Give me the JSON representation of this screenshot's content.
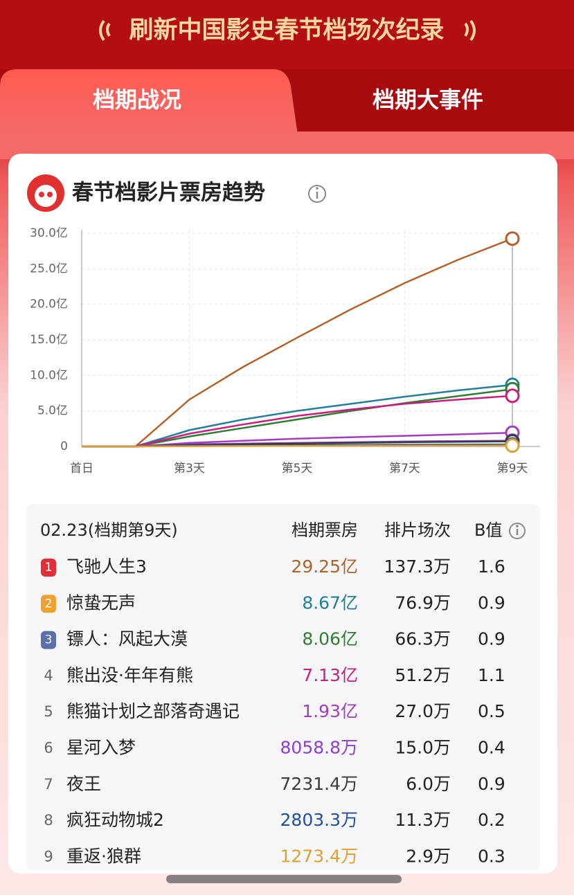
{
  "banner": {
    "title": "刷新中国影史春节档场次纪录"
  },
  "tabs": [
    "档期战况",
    "档期大事件"
  ],
  "card": {
    "title": "春节档影片票房趋势"
  },
  "chart_data": {
    "type": "line",
    "categories": [
      "首日",
      null,
      "第3天",
      null,
      "第5天",
      null,
      "第7天",
      null,
      "第9天"
    ],
    "ylim": [
      0,
      30
    ],
    "yticks": [
      0,
      {
        "value": 5,
        "label": "5.0亿"
      },
      {
        "value": 10,
        "label": "10.0亿"
      },
      {
        "value": 15,
        "label": "15.0亿"
      },
      {
        "value": 20,
        "label": "20.0亿"
      },
      {
        "value": 25,
        "label": "25.0亿"
      },
      {
        "value": 30,
        "label": "30.0亿"
      }
    ],
    "grid": true,
    "series": [
      {
        "color": "#b0622a",
        "values": [
          0,
          0,
          6.6,
          11.2,
          15.3,
          19.3,
          23.0,
          26.3,
          29.25
        ]
      },
      {
        "color": "#227f96",
        "values": [
          0,
          0,
          2.3,
          3.8,
          5.0,
          6.0,
          7.0,
          7.9,
          8.67
        ]
      },
      {
        "color": "#2e7d32",
        "values": [
          0,
          0,
          1.4,
          2.6,
          3.8,
          5.0,
          6.1,
          7.1,
          8.06
        ]
      },
      {
        "color": "#c81e7e",
        "values": [
          0,
          0,
          1.8,
          3.1,
          4.3,
          5.2,
          6.0,
          6.6,
          7.13
        ]
      },
      {
        "color": "#a43cc0",
        "values": [
          0,
          0,
          0.5,
          0.8,
          1.1,
          1.3,
          1.5,
          1.7,
          1.93
        ]
      },
      {
        "color": "#8a3fd0",
        "values": [
          0,
          0,
          0.3,
          0.4,
          0.5,
          0.6,
          0.7,
          0.76,
          0.81
        ]
      },
      {
        "color": "#3a3a3a",
        "values": [
          0,
          0,
          0.2,
          0.3,
          0.4,
          0.5,
          0.6,
          0.66,
          0.72
        ]
      },
      {
        "color": "#1f4fa0",
        "values": [
          0,
          0,
          0.1,
          0.14,
          0.18,
          0.21,
          0.24,
          0.26,
          0.28
        ]
      },
      {
        "color": "#e0a030",
        "values": [
          0,
          0,
          0.04,
          0.06,
          0.08,
          0.1,
          0.11,
          0.12,
          0.13
        ]
      }
    ]
  },
  "table": {
    "header": [
      "02.23(档期第9天)",
      "档期票房",
      "排片场次",
      "B值"
    ],
    "rows": [
      [
        "1",
        "飞驰人生3",
        "29.25亿",
        "137.3万",
        "1.6"
      ],
      [
        "2",
        "惊蛰无声",
        "8.67亿",
        "76.9万",
        "0.9"
      ],
      [
        "3",
        "镖人：风起大漠",
        "8.06亿",
        "66.3万",
        "0.9"
      ],
      [
        "4",
        "熊出没·年年有熊",
        "7.13亿",
        "51.2万",
        "1.1"
      ],
      [
        "5",
        "熊猫计划之部落奇遇记",
        "1.93亿",
        "27.0万",
        "0.5"
      ],
      [
        "6",
        "星河入梦",
        "8058.8万",
        "15.0万",
        "0.4"
      ],
      [
        "7",
        "夜王",
        "7231.4万",
        "6.0万",
        "0.9"
      ],
      [
        "8",
        "疯狂动物城2",
        "2803.3万",
        "11.3万",
        "0.2"
      ],
      [
        "9",
        "重返·狼群",
        "1273.4万",
        "2.9万",
        "0.3"
      ]
    ]
  }
}
